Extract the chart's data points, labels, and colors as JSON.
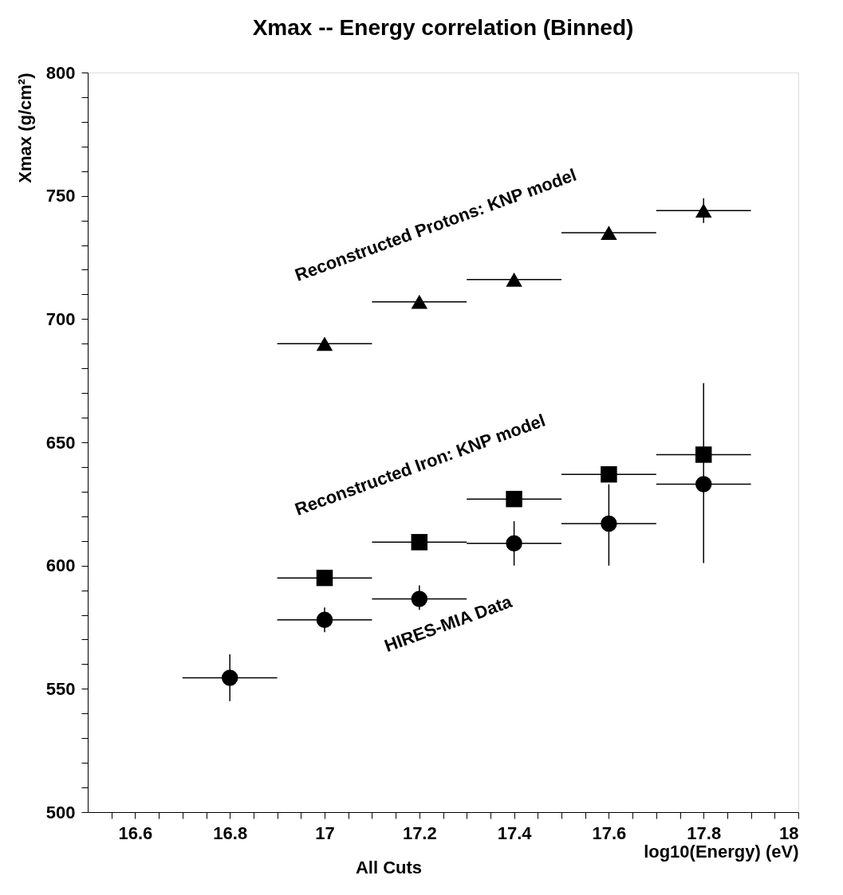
{
  "chart_data": {
    "type": "scatter",
    "title": "Xmax -- Energy correlation (Binned)",
    "xlabel": "log10(Energy) (eV)",
    "ylabel": "Xmax (g/cm²)",
    "annotations": [
      "All Cuts"
    ],
    "xlim": [
      16.5,
      18
    ],
    "ylim": [
      500,
      800
    ],
    "xticks": [
      {
        "value": 16.55,
        "label": null
      },
      16.6,
      {
        "value": 16.65,
        "label": null
      },
      {
        "value": 16.7,
        "label": null
      },
      {
        "value": 16.75,
        "label": null
      },
      16.8,
      {
        "value": 16.85,
        "label": null
      },
      {
        "value": 16.9,
        "label": null
      },
      {
        "value": 16.95,
        "label": null
      },
      17,
      {
        "value": 17.05,
        "label": null
      },
      {
        "value": 17.1,
        "label": null
      },
      {
        "value": 17.15,
        "label": null
      },
      17.2,
      {
        "value": 17.25,
        "label": null
      },
      {
        "value": 17.3,
        "label": null
      },
      {
        "value": 17.35,
        "label": null
      },
      17.4,
      {
        "value": 17.45,
        "label": null
      },
      {
        "value": 17.5,
        "label": null
      },
      {
        "value": 17.55,
        "label": null
      },
      17.6,
      {
        "value": 17.65,
        "label": null
      },
      {
        "value": 17.7,
        "label": null
      },
      {
        "value": 17.75,
        "label": null
      },
      17.8,
      {
        "value": 17.85,
        "label": null
      },
      {
        "value": 17.9,
        "label": null
      },
      {
        "value": 17.95,
        "label": null
      },
      18
    ],
    "yticks": [
      500,
      {
        "value": 510,
        "label": null
      },
      {
        "value": 520,
        "label": null
      },
      {
        "value": 530,
        "label": null
      },
      {
        "value": 540,
        "label": null
      },
      550,
      {
        "value": 560,
        "label": null
      },
      {
        "value": 570,
        "label": null
      },
      {
        "value": 580,
        "label": null
      },
      {
        "value": 590,
        "label": null
      },
      600,
      {
        "value": 610,
        "label": null
      },
      {
        "value": 620,
        "label": null
      },
      {
        "value": 630,
        "label": null
      },
      {
        "value": 640,
        "label": null
      },
      650,
      {
        "value": 660,
        "label": null
      },
      {
        "value": 670,
        "label": null
      },
      {
        "value": 680,
        "label": null
      },
      {
        "value": 690,
        "label": null
      },
      700,
      {
        "value": 710,
        "label": null
      },
      {
        "value": 720,
        "label": null
      },
      {
        "value": 730,
        "label": null
      },
      {
        "value": 740,
        "label": null
      },
      750,
      {
        "value": 760,
        "label": null
      },
      {
        "value": 770,
        "label": null
      },
      {
        "value": 780,
        "label": null
      },
      {
        "value": 790,
        "label": null
      },
      800
    ],
    "grid": false,
    "legend": false,
    "series": [
      {
        "name": "Reconstructed Protons: KNP model",
        "color": "#000000",
        "marker": "triangle",
        "x": [
          17.0,
          17.2,
          17.4,
          17.6,
          17.8
        ],
        "values": [
          690,
          707,
          716,
          735,
          744
        ],
        "errors": [
          null,
          null,
          null,
          null,
          [
            739,
            749
          ]
        ],
        "xerrors": [
          0.1,
          0.1,
          0.1,
          0.1,
          0.1
        ]
      },
      {
        "name": "Reconstructed Iron: KNP model",
        "color": "#000000",
        "marker": "square",
        "x": [
          17.0,
          17.2,
          17.4,
          17.6,
          17.8
        ],
        "values": [
          595,
          609.5,
          627,
          637,
          645
        ],
        "errors": [
          null,
          null,
          null,
          null,
          null
        ],
        "xerrors": [
          0.1,
          0.1,
          0.1,
          0.1,
          0.1
        ]
      },
      {
        "name": "HIRES-MIA Data",
        "color": "#000000",
        "marker": "circle",
        "x": [
          16.8,
          17.0,
          17.2,
          17.4,
          17.6,
          17.8
        ],
        "values": [
          554.5,
          578,
          586.5,
          609,
          617,
          633
        ],
        "errors": [
          [
            545,
            564
          ],
          [
            573,
            583
          ],
          [
            582,
            592
          ],
          [
            600,
            618
          ],
          [
            600,
            633
          ],
          [
            601,
            674
          ]
        ],
        "xerrors": [
          0.1,
          0.1,
          0.1,
          0.1,
          0.1,
          0.1
        ]
      }
    ]
  }
}
